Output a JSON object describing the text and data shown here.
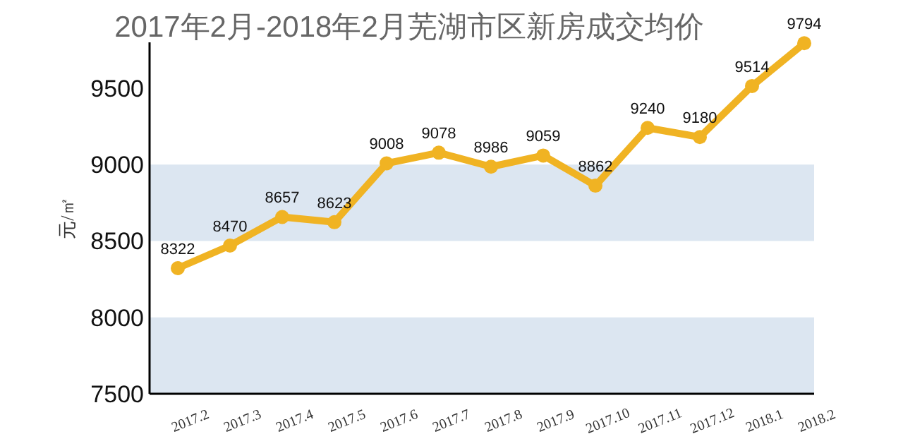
{
  "chart_data": {
    "type": "line",
    "title": "2017年2月-2018年2月芜湖市区新房成交均价",
    "ylabel": "元/㎡",
    "categories": [
      "2017.2",
      "2017.3",
      "2017.4",
      "2017.5",
      "2017.6",
      "2017.7",
      "2017.8",
      "2017.9",
      "2017.10",
      "2017.11",
      "2017.12",
      "2018.1",
      "2018.2"
    ],
    "series": [
      {
        "color": "#f0b323",
        "values": [
          8322,
          8470,
          8657,
          8623,
          9008,
          9078,
          8986,
          9059,
          8862,
          9240,
          9180,
          9514,
          9794
        ]
      }
    ],
    "ylim": [
      7500,
      9800
    ],
    "yticks": [
      7500,
      8000,
      8500,
      9000,
      9500
    ],
    "bands": [
      {
        "axis": "y",
        "from": 7500,
        "to": 8000,
        "color": "#dce6f1"
      },
      {
        "axis": "y",
        "from": 8500,
        "to": 9000,
        "color": "#dce6f1"
      }
    ],
    "data_labels": true,
    "marker": "circle",
    "line_style": "solid",
    "grid": false
  }
}
